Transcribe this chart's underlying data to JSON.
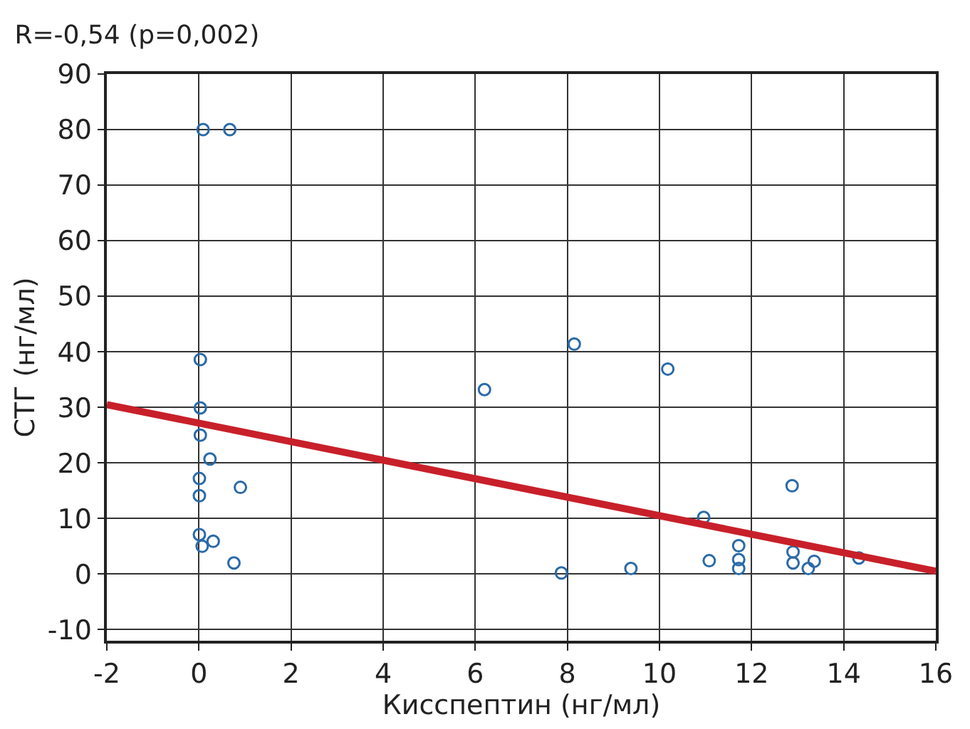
{
  "chart_data": {
    "type": "scatter",
    "title": "R=-0,54 (p=0,002)",
    "xlabel": "Кисспептин (нг/мл)",
    "ylabel": "СТГ (нг/мл)",
    "series": [
      {
        "type": "scatter",
        "color": "#2a6aa8",
        "marker": "circle",
        "x": [
          0.09,
          0.67,
          0.03,
          0.03,
          0.03,
          0.24,
          0.01,
          0.9,
          0.01,
          0.01,
          0.31,
          0.07,
          0.76,
          6.2,
          8.15,
          10.18,
          10.96,
          7.87,
          9.38,
          11.08,
          11.72,
          11.72,
          11.72,
          12.88,
          12.9,
          12.9,
          13.23,
          13.36,
          14.33
        ],
        "values": [
          80,
          80,
          38.6,
          29.9,
          25,
          20.7,
          17.2,
          15.6,
          14.1,
          7.1,
          5.9,
          5.0,
          2.0,
          33.2,
          41.4,
          36.9,
          10.2,
          0.2,
          1.0,
          2.4,
          5.1,
          2.6,
          1.0,
          15.9,
          4.0,
          2.0,
          1.0,
          2.3,
          2.9
        ]
      },
      {
        "type": "line",
        "color": "#c8202a",
        "marker": "none",
        "x": [
          -2,
          16
        ],
        "values": [
          30.5,
          0.5
        ]
      }
    ],
    "xlim": [
      -2,
      16
    ],
    "xticks": [
      -2,
      0,
      2,
      4,
      6,
      8,
      10,
      12,
      14,
      16
    ],
    "ylim": [
      -12,
      90
    ],
    "yticks": [
      -10,
      0,
      10,
      20,
      30,
      40,
      50,
      60,
      70,
      80,
      90
    ],
    "grid": true
  }
}
